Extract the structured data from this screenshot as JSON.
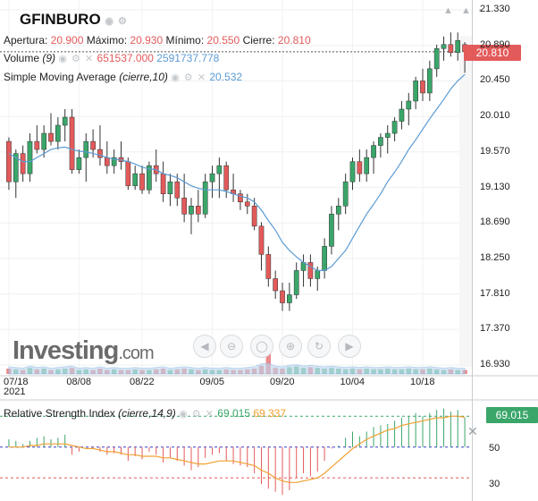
{
  "header": {
    "symbol": "GFINBURO",
    "apertura_label": "Apertura:",
    "apertura": "20.900",
    "maximo_label": "Máximo:",
    "maximo": "20.930",
    "minimo_label": "Mínimo:",
    "minimo": "20.550",
    "cierre_label": "Cierre:",
    "cierre": "20.810"
  },
  "volume_legend": {
    "label": "Volume",
    "param": "(9)",
    "value1": "651537.000",
    "value2": "2591737.778"
  },
  "sma_legend": {
    "label": "Simple Moving Average",
    "param": "(cierre,10)",
    "value": "20.532"
  },
  "rsi_legend": {
    "label": "Relative Strength Index",
    "param": "(cierre,14,9)",
    "value1": "69.015",
    "value2": "69.337"
  },
  "price_tag": "20.810",
  "rsi_tag": "69.015",
  "logo": {
    "main": "Investing",
    "suffix": ".com"
  },
  "colors": {
    "up": "#3aa66a",
    "down": "#e35a5a",
    "sma": "#5b9bd5",
    "rsi_signal": "#f0a030",
    "rsi_up_bar": "#3aa66a",
    "rsi_down_bar": "#e35a5a"
  },
  "chart_data": [
    {
      "type": "candlestick",
      "title": "GFINBURO",
      "x_tick_labels": [
        "07/18",
        "08/08",
        "08/22",
        "09/05",
        "09/20",
        "10/04",
        "10/18"
      ],
      "x_tick_sublabel": "2021",
      "y_ticks": [
        "21.330",
        "20.890",
        "20.450",
        "20.010",
        "19.570",
        "19.130",
        "18.690",
        "18.250",
        "17.810",
        "17.370",
        "16.930"
      ],
      "ylim": [
        16.93,
        21.33
      ],
      "candles": [
        [
          19.7,
          19.75,
          19.1,
          19.2
        ],
        [
          19.2,
          19.6,
          19.0,
          19.55
        ],
        [
          19.55,
          19.65,
          19.2,
          19.3
        ],
        [
          19.3,
          19.8,
          19.2,
          19.7
        ],
        [
          19.7,
          19.9,
          19.55,
          19.6
        ],
        [
          19.6,
          19.9,
          19.5,
          19.8
        ],
        [
          19.8,
          20.05,
          19.65,
          19.7
        ],
        [
          19.7,
          20.0,
          19.6,
          19.9
        ],
        [
          19.9,
          20.1,
          19.7,
          20.0
        ],
        [
          20.0,
          20.1,
          19.3,
          19.35
        ],
        [
          19.35,
          19.6,
          19.3,
          19.5
        ],
        [
          19.5,
          19.8,
          19.2,
          19.7
        ],
        [
          19.7,
          19.85,
          19.5,
          19.6
        ],
        [
          19.6,
          19.9,
          19.4,
          19.5
        ],
        [
          19.5,
          19.7,
          19.3,
          19.4
        ],
        [
          19.4,
          19.6,
          19.3,
          19.5
        ],
        [
          19.5,
          19.7,
          19.35,
          19.45
        ],
        [
          19.45,
          19.5,
          19.1,
          19.15
        ],
        [
          19.15,
          19.4,
          19.1,
          19.3
        ],
        [
          19.3,
          19.4,
          19.05,
          19.1
        ],
        [
          19.1,
          19.45,
          19.05,
          19.4
        ],
        [
          19.4,
          19.6,
          19.2,
          19.3
        ],
        [
          19.3,
          19.45,
          18.95,
          19.05
        ],
        [
          19.05,
          19.3,
          18.9,
          19.2
        ],
        [
          19.2,
          19.3,
          18.9,
          19.0
        ],
        [
          19.0,
          19.3,
          18.7,
          18.8
        ],
        [
          18.8,
          19.0,
          18.55,
          18.9
        ],
        [
          18.9,
          19.1,
          18.7,
          18.8
        ],
        [
          18.8,
          19.3,
          18.75,
          19.2
        ],
        [
          19.2,
          19.4,
          19.0,
          19.3
        ],
        [
          19.3,
          19.5,
          19.0,
          19.4
        ],
        [
          19.4,
          19.45,
          19.0,
          19.1
        ],
        [
          19.1,
          19.3,
          18.95,
          19.05
        ],
        [
          19.05,
          19.1,
          18.85,
          18.95
        ],
        [
          18.95,
          19.05,
          18.8,
          18.9
        ],
        [
          18.9,
          19.0,
          18.6,
          18.65
        ],
        [
          18.65,
          18.7,
          18.1,
          18.3
        ],
        [
          18.3,
          18.4,
          17.9,
          18.0
        ],
        [
          18.0,
          18.1,
          17.75,
          17.85
        ],
        [
          17.85,
          17.95,
          17.6,
          17.7
        ],
        [
          17.7,
          17.95,
          17.6,
          17.8
        ],
        [
          17.8,
          18.2,
          17.75,
          18.1
        ],
        [
          18.1,
          18.3,
          17.9,
          18.2
        ],
        [
          18.2,
          18.3,
          17.9,
          18.0
        ],
        [
          18.0,
          18.15,
          17.85,
          18.1
        ],
        [
          18.1,
          18.5,
          18.0,
          18.4
        ],
        [
          18.4,
          18.9,
          18.3,
          18.8
        ],
        [
          18.8,
          19.0,
          18.6,
          18.9
        ],
        [
          18.9,
          19.3,
          18.8,
          19.2
        ],
        [
          19.2,
          19.5,
          19.1,
          19.45
        ],
        [
          19.45,
          19.6,
          19.2,
          19.3
        ],
        [
          19.3,
          19.6,
          19.2,
          19.5
        ],
        [
          19.5,
          19.7,
          19.3,
          19.65
        ],
        [
          19.65,
          19.8,
          19.5,
          19.75
        ],
        [
          19.75,
          19.9,
          19.55,
          19.8
        ],
        [
          19.8,
          20.0,
          19.7,
          19.95
        ],
        [
          19.95,
          20.2,
          19.85,
          20.1
        ],
        [
          20.1,
          20.3,
          19.9,
          20.2
        ],
        [
          20.2,
          20.5,
          20.1,
          20.45
        ],
        [
          20.45,
          20.6,
          20.2,
          20.3
        ],
        [
          20.3,
          20.7,
          20.2,
          20.6
        ],
        [
          20.6,
          20.9,
          20.5,
          20.85
        ],
        [
          20.85,
          21.0,
          20.7,
          20.9
        ],
        [
          20.9,
          21.05,
          20.75,
          20.8
        ],
        [
          20.8,
          21.05,
          20.7,
          20.95
        ],
        [
          20.9,
          20.93,
          20.55,
          20.81
        ]
      ],
      "sma": [
        19.55,
        19.5,
        19.45,
        19.45,
        19.5,
        19.55,
        19.6,
        19.62,
        19.63,
        19.6,
        19.58,
        19.57,
        19.55,
        19.53,
        19.5,
        19.48,
        19.47,
        19.45,
        19.42,
        19.38,
        19.36,
        19.35,
        19.3,
        19.28,
        19.25,
        19.2,
        19.15,
        19.12,
        19.1,
        19.1,
        19.1,
        19.08,
        19.05,
        19.02,
        19.0,
        18.95,
        18.85,
        18.72,
        18.6,
        18.45,
        18.35,
        18.27,
        18.2,
        18.15,
        18.1,
        18.1,
        18.15,
        18.25,
        18.35,
        18.5,
        18.65,
        18.8,
        18.92,
        19.05,
        19.2,
        19.32,
        19.45,
        19.6,
        19.72,
        19.85,
        19.98,
        20.1,
        20.22,
        20.35,
        20.45,
        20.53
      ],
      "volume": [
        0.5,
        0.4,
        0.3,
        0.6,
        0.4,
        0.5,
        0.3,
        0.4,
        0.5,
        0.6,
        0.3,
        0.4,
        0.3,
        0.5,
        0.3,
        0.4,
        0.3,
        0.3,
        0.4,
        0.3,
        0.3,
        0.4,
        0.5,
        0.3,
        0.4,
        0.5,
        0.4,
        0.3,
        0.4,
        0.3,
        0.3,
        0.4,
        0.3,
        0.3,
        0.4,
        0.5,
        0.9,
        2.4,
        0.6,
        0.5,
        0.7,
        0.8,
        0.6,
        0.7,
        0.6,
        0.5,
        0.6,
        0.5,
        0.4,
        0.5,
        0.4,
        0.5,
        0.4,
        0.4,
        0.5,
        0.4,
        0.4,
        0.5,
        0.4,
        0.4,
        0.5,
        0.4,
        0.3,
        0.4,
        0.3,
        0.3
      ]
    },
    {
      "type": "line",
      "title": "Relative Strength Index",
      "y_ticks": [
        "50",
        "30"
      ],
      "ylim": [
        15,
        80
      ],
      "rsi": [
        55,
        54,
        52,
        54,
        56,
        57,
        55,
        56,
        58,
        45,
        47,
        50,
        49,
        47,
        45,
        46,
        45,
        41,
        44,
        42,
        47,
        45,
        40,
        43,
        41,
        38,
        35,
        37,
        43,
        45,
        46,
        41,
        39,
        38,
        37,
        33,
        26,
        23,
        21,
        19,
        22,
        30,
        33,
        31,
        34,
        41,
        49,
        51,
        56,
        60,
        57,
        60,
        63,
        64,
        65,
        67,
        69,
        70,
        72,
        70,
        72,
        74,
        75,
        73,
        74,
        69
      ],
      "signal": [
        50,
        50,
        50,
        51,
        51,
        52,
        52,
        52,
        52,
        51,
        50,
        49,
        49,
        48,
        47,
        47,
        46,
        45,
        45,
        44,
        44,
        44,
        43,
        43,
        42,
        41,
        40,
        39,
        39,
        40,
        41,
        41,
        41,
        40,
        39,
        38,
        35,
        33,
        30,
        28,
        27,
        27,
        28,
        29,
        30,
        33,
        37,
        41,
        45,
        49,
        52,
        55,
        57,
        59,
        61,
        62,
        64,
        65,
        66,
        67,
        68,
        69,
        69,
        70,
        70,
        69.3
      ]
    }
  ]
}
